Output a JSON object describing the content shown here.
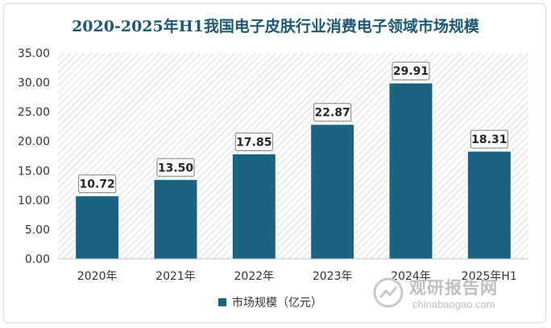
{
  "chart_data": {
    "type": "bar",
    "title": "2020-2025年H1我国电子皮肤行业消费电子领域市场规模",
    "categories": [
      "2020年",
      "2021年",
      "2022年",
      "2023年",
      "2024年",
      "2025年H1"
    ],
    "series": [
      {
        "name": "市场规模（亿元）",
        "values": [
          10.72,
          13.5,
          17.85,
          22.87,
          29.91,
          18.31
        ]
      }
    ],
    "value_labels": [
      "10.72",
      "13.50",
      "17.85",
      "22.87",
      "29.91",
      "18.31"
    ],
    "yticks": [
      "0.00",
      "5.00",
      "10.00",
      "15.00",
      "20.00",
      "25.00",
      "30.00",
      "35.00"
    ],
    "ylim": [
      0,
      35
    ],
    "xlabel": "",
    "ylabel": "",
    "legend_position": "bottom",
    "colors": {
      "bar": "#1c6383",
      "title": "#1d5876",
      "hatch": "#e6e6e6"
    }
  },
  "watermark": {
    "name": "观研报告网",
    "url": "chinabaogao.com"
  }
}
